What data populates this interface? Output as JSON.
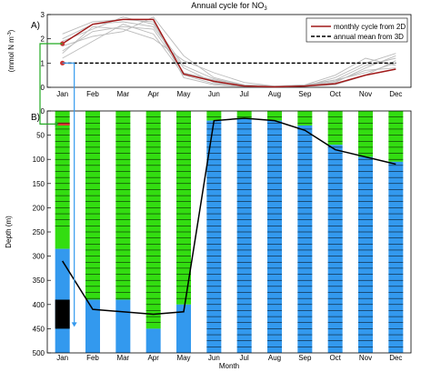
{
  "figure": {
    "title": "Annual cycle for NO",
    "title_subscript": "3"
  },
  "chart_data": [
    {
      "panel": "A)",
      "type": "line",
      "ylabel": "(mmol N m",
      "ylabel_sup": "-3",
      "ylabel_end": ")",
      "ylim": [
        0,
        3
      ],
      "yticks": [
        "0",
        "1",
        "2",
        "3"
      ],
      "categories": [
        "Jan",
        "Feb",
        "Mar",
        "Apr",
        "May",
        "Jun",
        "Jul",
        "Aug",
        "Sep",
        "Oct",
        "Nov",
        "Dec"
      ],
      "legend": {
        "placement": "top-right",
        "entries": [
          "monthly cycle from 2D",
          "annual mean from 3D"
        ]
      },
      "series": [
        {
          "name": "monthly cycle from 2D",
          "color": "#a01a1a",
          "style": "solid",
          "values": [
            1.8,
            2.6,
            2.8,
            2.8,
            0.55,
            0.25,
            0.05,
            0.02,
            0.05,
            0.15,
            0.5,
            0.75
          ]
        },
        {
          "name": "annual mean from 3D",
          "color": "#000000",
          "style": "dashed",
          "values": [
            1.0,
            1.0,
            1.0,
            1.0,
            1.0,
            1.0,
            1.0,
            1.0,
            1.0,
            1.0,
            1.0,
            1.0
          ]
        }
      ],
      "background_series_color": "#bbbbbb",
      "background_series": [
        [
          1.5,
          2.3,
          2.5,
          2.4,
          0.6,
          0.3,
          0.1,
          0.05,
          0.1,
          0.3,
          0.6,
          1.0
        ],
        [
          2.0,
          2.6,
          2.7,
          2.5,
          0.8,
          0.2,
          0.05,
          0.02,
          0.05,
          0.2,
          0.8,
          1.3
        ],
        [
          1.2,
          1.9,
          2.6,
          2.2,
          0.5,
          0.15,
          0.04,
          0.02,
          0.04,
          0.1,
          0.5,
          1.1
        ],
        [
          2.2,
          2.7,
          2.8,
          2.7,
          0.4,
          0.1,
          0.03,
          0.02,
          0.05,
          0.4,
          1.0,
          1.4
        ],
        [
          1.7,
          2.1,
          2.3,
          2.9,
          1.3,
          0.4,
          0.1,
          0.05,
          0.1,
          0.5,
          1.2,
          0.9
        ],
        [
          1.4,
          2.5,
          2.4,
          2.0,
          1.1,
          0.6,
          0.2,
          0.05,
          0.08,
          0.3,
          0.9,
          1.2
        ],
        [
          1.9,
          2.4,
          2.9,
          2.6,
          0.9,
          0.35,
          0.08,
          0.03,
          0.07,
          0.25,
          0.7,
          0.8
        ]
      ],
      "markers": [
        {
          "x": "Jan",
          "value": 1.8,
          "color": "#c83232"
        },
        {
          "x": "Jan",
          "value": 1.0,
          "color": "#c83232"
        }
      ]
    },
    {
      "panel": "B)",
      "type": "bar",
      "xlabel": "Month",
      "ylabel": "Depth (m)",
      "ylim": [
        0,
        500
      ],
      "y_inverted": true,
      "yticks": [
        "0",
        "50",
        "100",
        "150",
        "200",
        "250",
        "300",
        "350",
        "400",
        "450",
        "500"
      ],
      "categories": [
        "Jan",
        "Feb",
        "Mar",
        "Apr",
        "May",
        "Jun",
        "Jul",
        "Aug",
        "Sep",
        "Oct",
        "Nov",
        "Dec"
      ],
      "colors": {
        "green": "#33dd11",
        "blue": "#3399ee",
        "black": "#000000",
        "red": "#dd3333"
      },
      "green_bottom_depth_m": [
        285,
        390,
        390,
        450,
        400,
        20,
        15,
        20,
        30,
        70,
        95,
        105
      ],
      "layer_lines_top_m": [
        0,
        0,
        0,
        0,
        0,
        0,
        0,
        0,
        0,
        0,
        0,
        0
      ],
      "layer_lines_bottom_m": [
        250,
        390,
        390,
        450,
        400,
        500,
        500,
        500,
        500,
        500,
        500,
        500
      ],
      "layer_spacing_m": 12.5,
      "black_block_jan_m": [
        390,
        450
      ],
      "red_block_jan_m": [
        24,
        30
      ],
      "mld_line": {
        "x": [
          "Jan",
          "Feb",
          "Apr",
          "May",
          "Jun",
          "Jul",
          "Aug",
          "Sep",
          "Oct",
          "Dec"
        ],
        "depth_m": [
          310,
          410,
          420,
          415,
          20,
          15,
          20,
          40,
          80,
          110
        ]
      },
      "connector_colors": {
        "green": "#22aa22",
        "blue": "#3399ee"
      }
    }
  ]
}
